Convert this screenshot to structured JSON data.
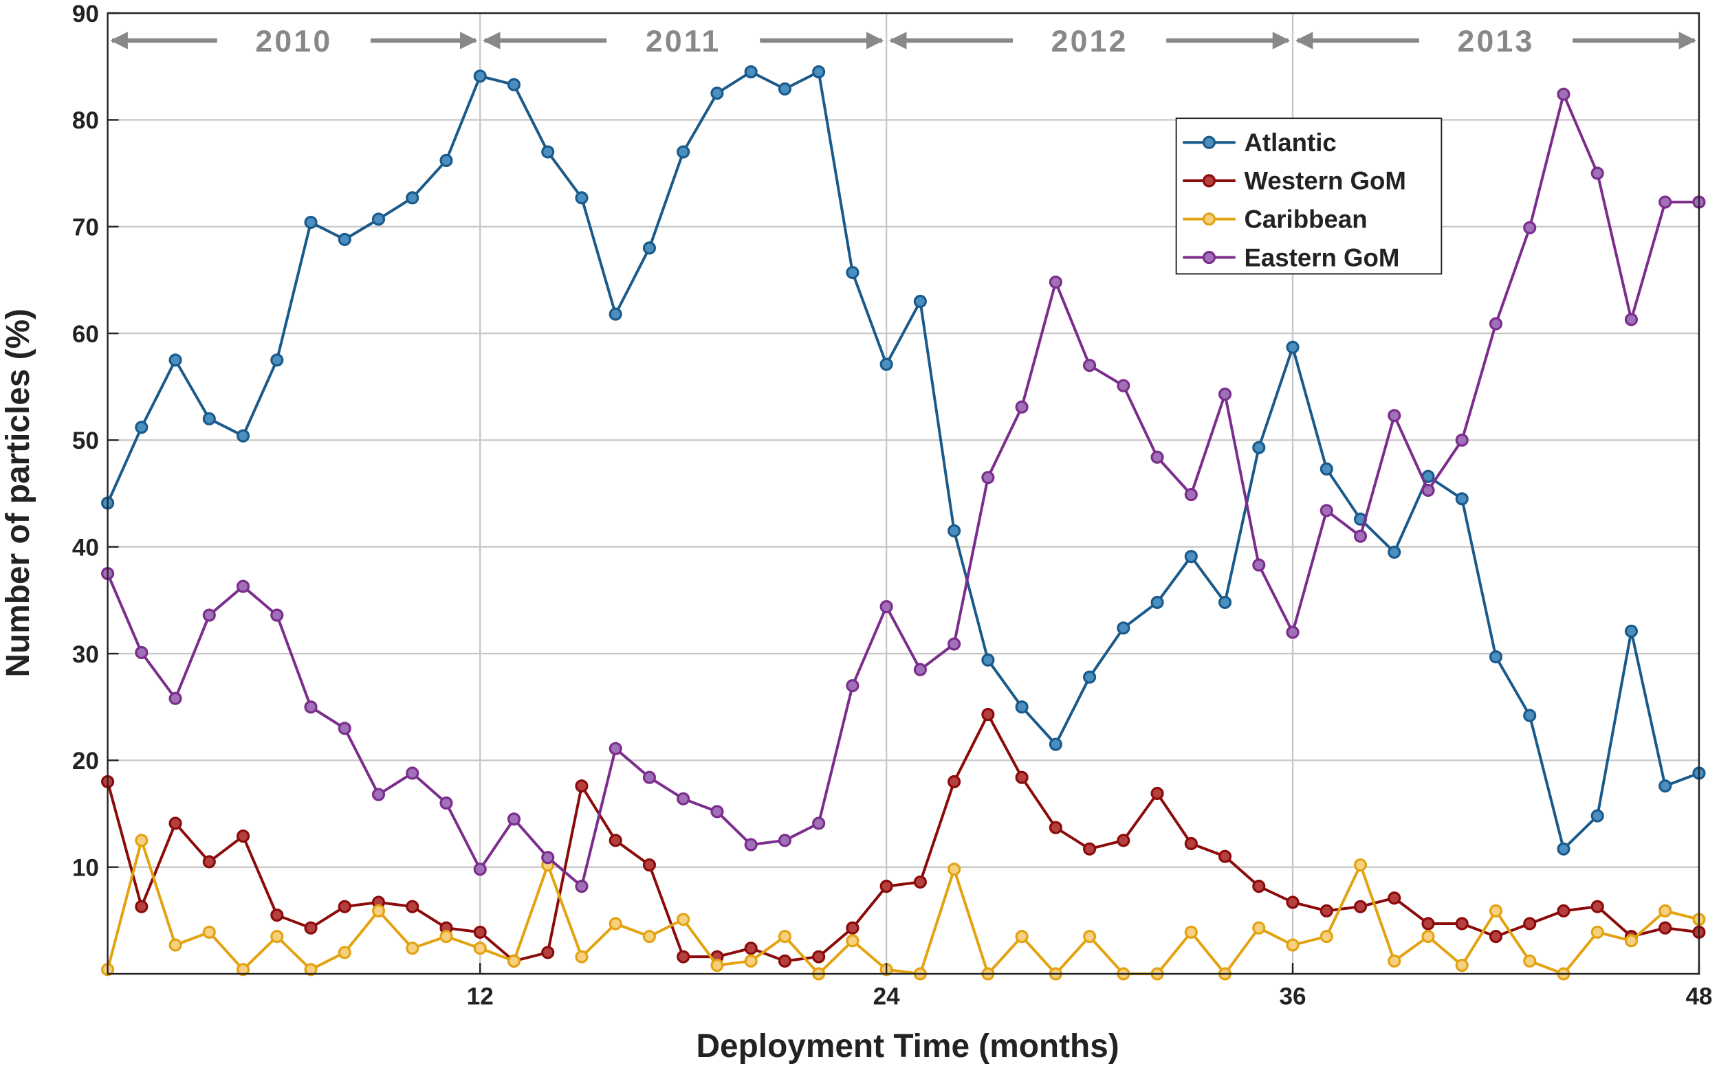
{
  "chart_data": {
    "type": "line",
    "xlabel": "Deployment Time (months)",
    "ylabel": "Number of particles (%)",
    "x": [
      1,
      2,
      3,
      4,
      5,
      6,
      7,
      8,
      9,
      10,
      11,
      12,
      13,
      14,
      15,
      16,
      17,
      18,
      19,
      20,
      21,
      22,
      23,
      24,
      25,
      26,
      27,
      28,
      29,
      30,
      31,
      32,
      33,
      34,
      35,
      36,
      37,
      38,
      39,
      40,
      41,
      42,
      43,
      44,
      45,
      46,
      47,
      48
    ],
    "series": [
      {
        "name": "Atlantic",
        "color": "#1a5a8a",
        "marker_fill": "#4a8fc0",
        "values": [
          44.1,
          51.2,
          57.5,
          52.0,
          50.4,
          57.5,
          70.4,
          68.8,
          70.7,
          72.7,
          76.2,
          84.1,
          83.3,
          77.0,
          72.7,
          61.8,
          68.0,
          77.0,
          82.5,
          84.5,
          82.9,
          84.5,
          65.7,
          57.1,
          63.0,
          41.5,
          29.4,
          25.0,
          21.5,
          27.8,
          32.4,
          34.8,
          39.1,
          34.8,
          49.3,
          58.7,
          47.3,
          42.6,
          39.5,
          46.6,
          44.5,
          29.7,
          24.2,
          11.7,
          14.8,
          32.1,
          17.6,
          18.8
        ]
      },
      {
        "name": "Western GoM",
        "color": "#8b0a0a",
        "marker_fill": "#b54040",
        "values": [
          18.0,
          6.3,
          14.1,
          10.5,
          12.9,
          5.5,
          4.3,
          6.3,
          6.7,
          6.3,
          4.3,
          3.9,
          1.2,
          2.0,
          17.6,
          12.5,
          10.2,
          1.6,
          1.6,
          2.4,
          1.2,
          1.6,
          4.3,
          8.2,
          8.6,
          18.0,
          24.3,
          18.4,
          13.7,
          11.7,
          12.5,
          16.9,
          12.2,
          11.0,
          8.2,
          6.7,
          5.9,
          6.3,
          7.1,
          4.7,
          4.7,
          3.5,
          4.7,
          5.9,
          6.3,
          3.5,
          4.3,
          3.9
        ]
      },
      {
        "name": "Caribbean",
        "color": "#e3a20f",
        "marker_fill": "#f5d080",
        "values": [
          0.4,
          12.5,
          2.7,
          3.9,
          0.4,
          3.5,
          0.4,
          2.0,
          5.9,
          2.4,
          3.5,
          2.4,
          1.2,
          10.2,
          1.6,
          4.7,
          3.5,
          5.1,
          0.8,
          1.2,
          3.5,
          0,
          3.1,
          0.4,
          0,
          9.8,
          0,
          3.5,
          0,
          3.5,
          0,
          0,
          3.9,
          0,
          4.3,
          2.7,
          3.5,
          10.2,
          1.2,
          3.5,
          0.8,
          5.9,
          1.2,
          0,
          3.9,
          3.1,
          5.9,
          5.1
        ]
      },
      {
        "name": "Eastern GoM",
        "color": "#7b2d8b",
        "marker_fill": "#a070b8",
        "values": [
          37.5,
          30.1,
          25.8,
          33.6,
          36.3,
          33.6,
          25.0,
          23.0,
          16.8,
          18.8,
          16.0,
          9.8,
          14.5,
          10.9,
          8.2,
          21.1,
          18.4,
          16.4,
          15.2,
          12.1,
          12.5,
          14.1,
          27.0,
          34.4,
          28.5,
          30.9,
          46.5,
          53.1,
          64.8,
          57.0,
          55.1,
          48.4,
          44.9,
          54.3,
          38.3,
          32.0,
          43.4,
          41.0,
          52.3,
          45.3,
          50.0,
          60.9,
          69.9,
          82.4,
          75.0,
          61.3,
          72.3,
          72.3
        ]
      }
    ],
    "xlim": [
      1,
      48
    ],
    "ylim": [
      0,
      90
    ],
    "xticks": [
      12,
      24,
      36,
      48
    ],
    "yticks": [
      10,
      20,
      30,
      40,
      50,
      60,
      70,
      80,
      90
    ],
    "grid": true,
    "legend": "upper right",
    "annotations": [
      {
        "label": "2010",
        "x": [
          1,
          12
        ]
      },
      {
        "label": "2011",
        "x": [
          12,
          24
        ]
      },
      {
        "label": "2012",
        "x": [
          24,
          36
        ]
      },
      {
        "label": "2013",
        "x": [
          36,
          48
        ]
      }
    ]
  }
}
